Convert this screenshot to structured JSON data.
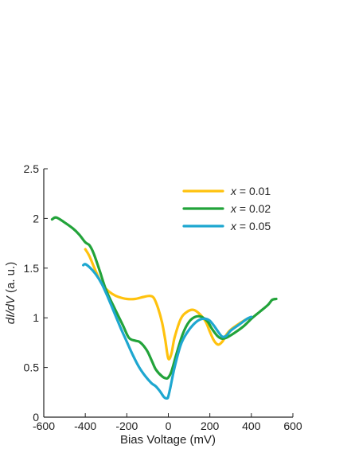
{
  "chart_data": {
    "type": "line",
    "title": "",
    "xlabel": "Bias Voltage (mV)",
    "ylabel_italic": "dI/dV",
    "ylabel_rest": " (a. u.)",
    "xlim": [
      -600,
      600
    ],
    "ylim": [
      0,
      2.5
    ],
    "xticks": [
      -600,
      -400,
      -200,
      0,
      200,
      400,
      600
    ],
    "xtick_labels": [
      "-600",
      "-400",
      "-200",
      "0",
      "200",
      "400",
      "600"
    ],
    "yticks": [
      0,
      0.5,
      1,
      1.5,
      2,
      2.5
    ],
    "ytick_labels": [
      "0",
      "0.5",
      "1",
      "1.5",
      "2",
      "2.5"
    ],
    "grid": false,
    "legend_position": "top-right",
    "series": [
      {
        "name_var": "x",
        "name_rest": " = 0.01",
        "color": "#FFC20E",
        "x": [
          -400,
          -380,
          -350,
          -320,
          -300,
          -270,
          -240,
          -200,
          -160,
          -120,
          -90,
          -70,
          -50,
          -30,
          -15,
          0,
          15,
          30,
          60,
          90,
          120,
          150,
          180,
          200,
          220,
          240,
          260,
          280,
          300,
          340,
          380,
          400
        ],
        "y": [
          1.69,
          1.62,
          1.47,
          1.34,
          1.29,
          1.24,
          1.21,
          1.19,
          1.19,
          1.21,
          1.22,
          1.2,
          1.1,
          0.95,
          0.78,
          0.59,
          0.64,
          0.8,
          0.99,
          1.06,
          1.08,
          1.04,
          0.96,
          0.86,
          0.77,
          0.73,
          0.76,
          0.83,
          0.88,
          0.94,
          0.99,
          1.0
        ]
      },
      {
        "name_var": "x",
        "name_rest": " = 0.02",
        "color": "#22A33A",
        "x": [
          -560,
          -540,
          -500,
          -460,
          -430,
          -400,
          -380,
          -360,
          -330,
          -300,
          -260,
          -220,
          -190,
          -160,
          -140,
          -120,
          -100,
          -80,
          -60,
          -30,
          -10,
          0,
          15,
          40,
          70,
          100,
          130,
          160,
          190,
          210,
          240,
          260,
          280,
          320,
          360,
          400,
          440,
          480,
          500,
          520
        ],
        "y": [
          1.99,
          2.01,
          1.96,
          1.9,
          1.84,
          1.76,
          1.73,
          1.65,
          1.47,
          1.28,
          1.1,
          0.93,
          0.8,
          0.77,
          0.76,
          0.72,
          0.66,
          0.57,
          0.48,
          0.41,
          0.39,
          0.4,
          0.46,
          0.64,
          0.84,
          0.96,
          1.01,
          1.01,
          0.96,
          0.89,
          0.81,
          0.79,
          0.8,
          0.85,
          0.91,
          0.99,
          1.06,
          1.13,
          1.18,
          1.19
        ]
      },
      {
        "name_var": "x",
        "name_rest": " = 0.05",
        "color": "#1EA7D0",
        "x": [
          -410,
          -400,
          -380,
          -350,
          -320,
          -290,
          -260,
          -230,
          -200,
          -170,
          -140,
          -110,
          -80,
          -60,
          -40,
          -20,
          -5,
          0,
          10,
          30,
          60,
          90,
          120,
          150,
          180,
          200,
          220,
          240,
          260,
          280,
          300,
          340,
          380,
          400
        ],
        "y": [
          1.53,
          1.54,
          1.51,
          1.44,
          1.34,
          1.2,
          1.05,
          0.9,
          0.76,
          0.62,
          0.5,
          0.41,
          0.34,
          0.31,
          0.26,
          0.2,
          0.19,
          0.21,
          0.3,
          0.5,
          0.73,
          0.85,
          0.93,
          0.98,
          0.99,
          0.97,
          0.92,
          0.86,
          0.81,
          0.82,
          0.87,
          0.93,
          0.99,
          1.01
        ]
      }
    ]
  }
}
